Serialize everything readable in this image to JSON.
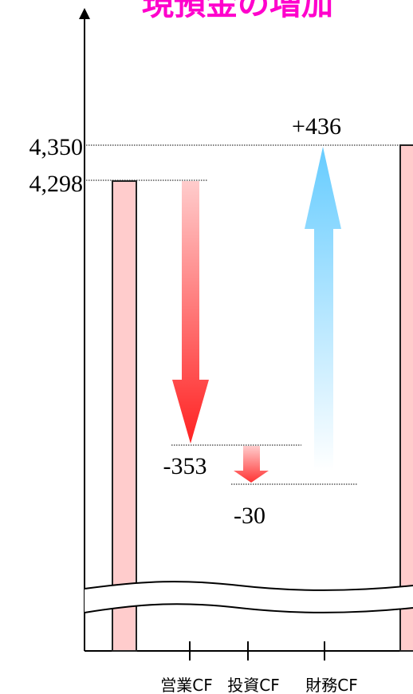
{
  "title": "現預金の増加",
  "colors": {
    "title": "#ff00cc",
    "bar_fill": "#ffcccc",
    "bar_stroke": "#222222",
    "negative_arrow": "#ff2222",
    "positive_arrow": "#66ccff",
    "axis": "#000000"
  },
  "chart_data": {
    "type": "waterfall",
    "title": "現預金の増加",
    "categories": [
      "営業CF",
      "投資CF",
      "財務CF"
    ],
    "y_ticks": [
      "4,350",
      "4,298"
    ],
    "start_value": 4298,
    "end_value": 4350,
    "steps": [
      {
        "category": "営業CF",
        "value": -353,
        "label": "-353"
      },
      {
        "category": "投資CF",
        "value": -30,
        "label": "-30"
      },
      {
        "category": "財務CF",
        "value": 436,
        "label": "+436"
      }
    ],
    "axis_break": true
  }
}
